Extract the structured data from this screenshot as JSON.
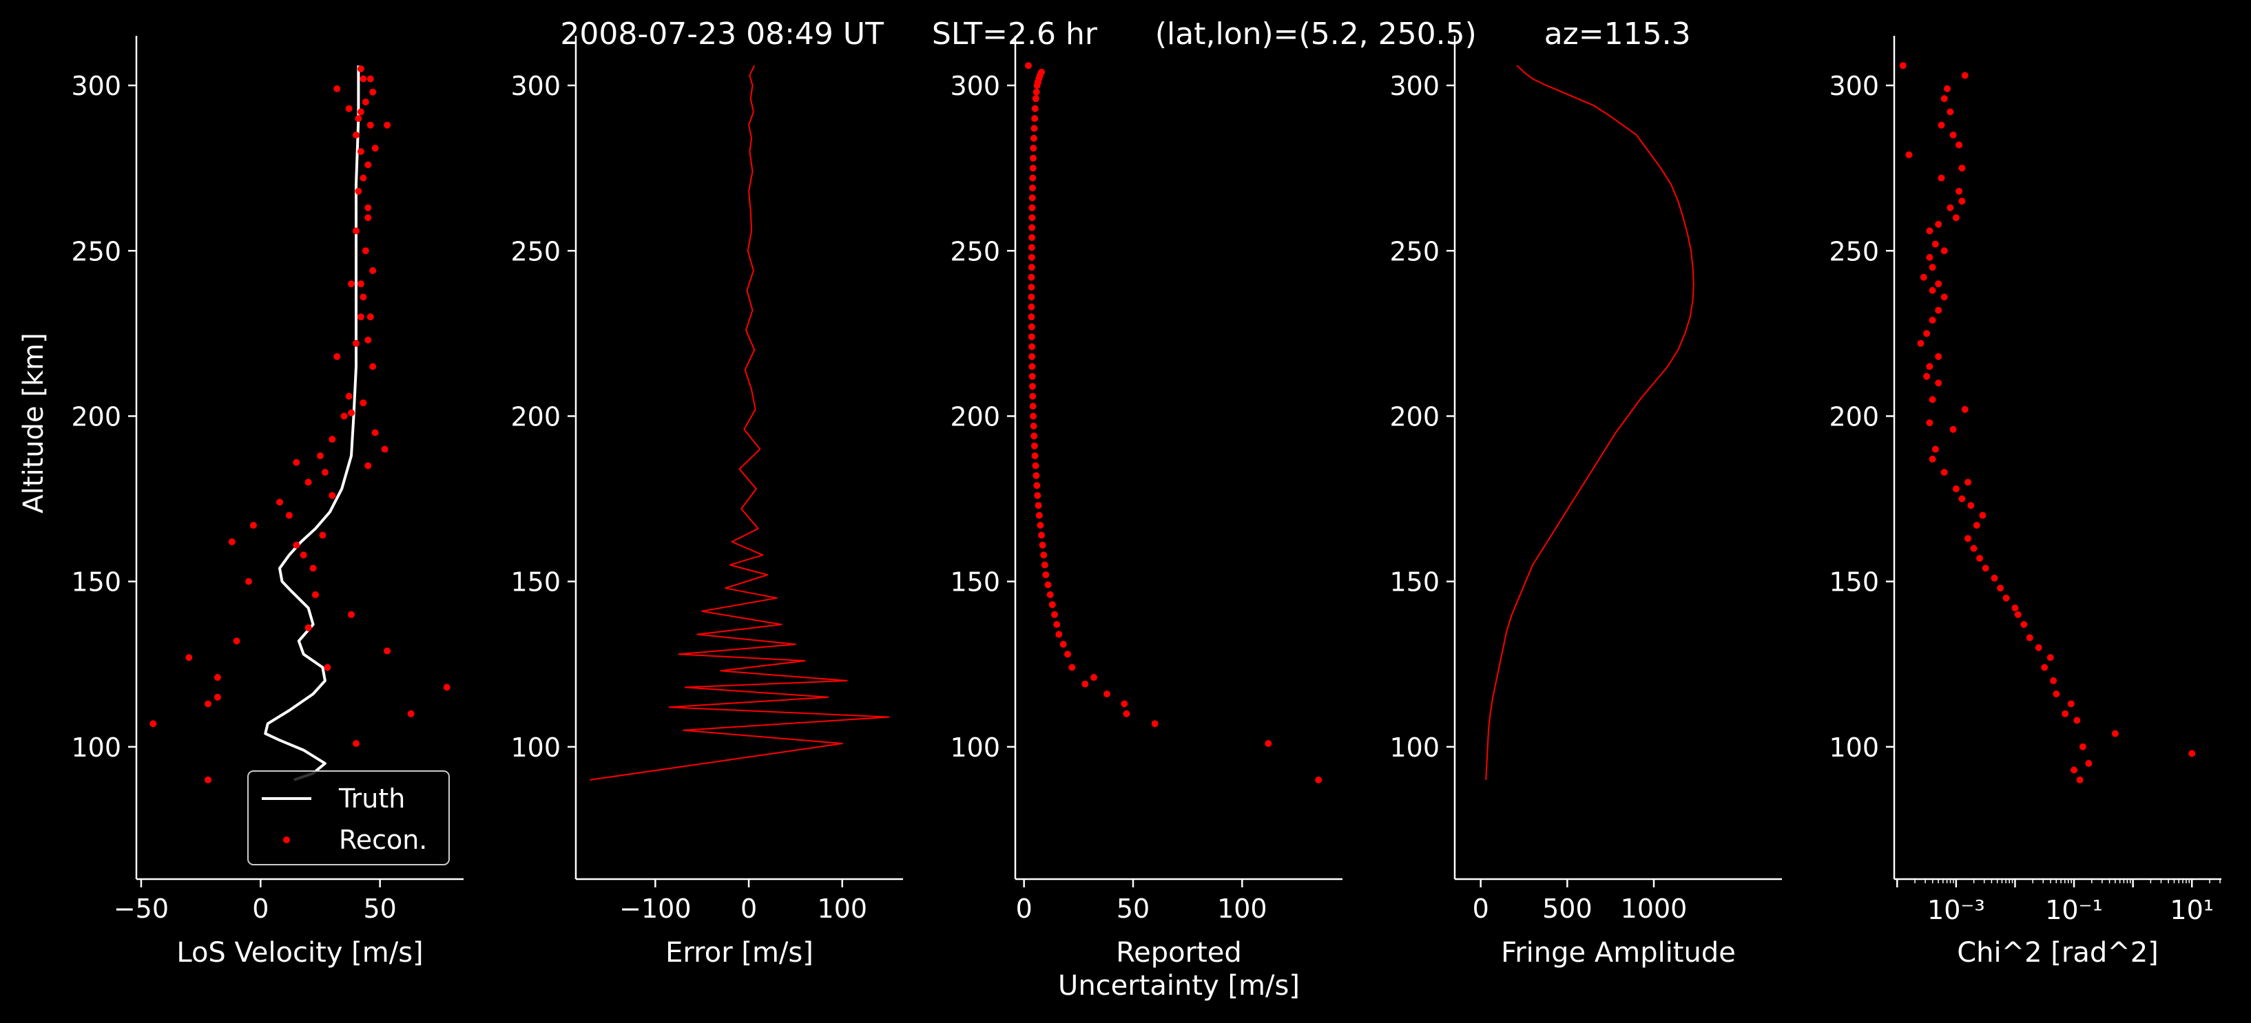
{
  "suptitle": "2008-07-23 08:49 UT     SLT=2.6 hr      (lat,lon)=(5.2, 250.5)       az=115.3",
  "colors": {
    "background": "#000000",
    "axis": "#ffffff",
    "truth": "#ffffff",
    "recon": "#ff0000"
  },
  "chart_data": [
    {
      "type": "line",
      "xlabel": "LoS Velocity [m/s]",
      "ylabel": "Altitude [km]",
      "xlim": [
        -52,
        85
      ],
      "ylim": [
        60,
        315
      ],
      "xticks": [
        -50,
        0,
        50
      ],
      "yticks": [
        100,
        150,
        200,
        250,
        300
      ],
      "legend": {
        "placement": "lower-right",
        "entries": [
          "Truth",
          "Recon."
        ]
      },
      "series": [
        {
          "name": "Truth",
          "kind": "line",
          "x": [
            14,
            22,
            27,
            18,
            8,
            2,
            3,
            12,
            22,
            27,
            26,
            18,
            16,
            22,
            20,
            13,
            9,
            8,
            12,
            17,
            23,
            29,
            34,
            38,
            39,
            40,
            40,
            40,
            40,
            41,
            41
          ],
          "y": [
            90,
            92,
            95,
            99,
            102,
            104,
            107,
            111,
            116,
            120,
            124,
            128,
            132,
            137,
            142,
            147,
            150,
            154,
            158,
            162,
            166,
            171,
            178,
            188,
            200,
            215,
            230,
            250,
            270,
            290,
            306
          ]
        },
        {
          "name": "Recon.",
          "kind": "scatter",
          "x": [
            -22,
            40,
            63,
            78,
            -45,
            -30,
            -22,
            -18,
            -18,
            28,
            53,
            38,
            -10,
            20,
            23,
            -5,
            22,
            18,
            15,
            -12,
            26,
            -3,
            12,
            8,
            20,
            30,
            15,
            27,
            25,
            30,
            45,
            35,
            48,
            52,
            38,
            43,
            37,
            47,
            32,
            40,
            45,
            42,
            38,
            47,
            44,
            40,
            45,
            41,
            43,
            45,
            48,
            40,
            46,
            42,
            44,
            47,
            41,
            43,
            42,
            46,
            53,
            42,
            32,
            37,
            42,
            46,
            43,
            45
          ],
          "y": [
            90,
            101,
            110,
            118,
            107,
            127,
            113,
            115,
            121,
            124,
            129,
            140,
            132,
            136,
            146,
            150,
            154,
            158,
            161,
            162,
            164,
            167,
            170,
            174,
            180,
            176,
            186,
            183,
            188,
            193,
            185,
            200,
            195,
            190,
            201,
            204,
            206,
            215,
            218,
            222,
            223,
            230,
            240,
            244,
            250,
            256,
            263,
            268,
            272,
            276,
            281,
            285,
            288,
            292,
            295,
            298,
            290,
            302,
            305,
            302,
            288,
            280,
            299,
            293,
            240,
            230,
            236,
            260
          ]
        }
      ]
    },
    {
      "type": "line",
      "xlabel": "Error [m/s]",
      "xlim": [
        -185,
        165
      ],
      "ylim": [
        60,
        315
      ],
      "xticks": [
        -100,
        0,
        100
      ],
      "yticks": [
        100,
        150,
        200,
        250,
        300
      ],
      "series": [
        {
          "name": "",
          "kind": "jagged",
          "x": [
            -170,
            100,
            -70,
            150,
            -85,
            85,
            -68,
            105,
            -30,
            60,
            -75,
            50,
            -55,
            35,
            -50,
            30,
            -25,
            20,
            -20,
            15,
            -18,
            10,
            -8,
            8,
            -10,
            12,
            -5,
            7,
            3,
            -4,
            6,
            -3,
            4,
            -2,
            5,
            -1,
            3,
            2,
            0,
            4,
            1,
            3,
            0,
            5,
            2,
            4,
            1,
            6
          ],
          "y": [
            90,
            101,
            105,
            109,
            112,
            115,
            118,
            120,
            123,
            126,
            128,
            131,
            134,
            137,
            141,
            145,
            148,
            152,
            155,
            158,
            162,
            166,
            172,
            178,
            184,
            190,
            196,
            202,
            208,
            214,
            220,
            226,
            232,
            238,
            244,
            250,
            256,
            262,
            268,
            274,
            280,
            284,
            288,
            292,
            296,
            300,
            303,
            306
          ]
        }
      ]
    },
    {
      "type": "scatter",
      "xlabel": "Reported Uncertainty [m/s]",
      "xlim": [
        -4,
        146
      ],
      "ylim": [
        60,
        315
      ],
      "xticks": [
        0,
        50,
        100
      ],
      "yticks": [
        100,
        150,
        200,
        250,
        300
      ],
      "series": [
        {
          "name": "",
          "kind": "scatter",
          "x": [
            135,
            112,
            60,
            47,
            46,
            38,
            32,
            28,
            22,
            20,
            18,
            16,
            15,
            14,
            13,
            12,
            11,
            10,
            9.5,
            9,
            8.5,
            8,
            7.5,
            7,
            6.6,
            6.2,
            5.9,
            5.6,
            5.3,
            5,
            4.8,
            4.6,
            4.4,
            4.2,
            4.1,
            4,
            3.9,
            3.8,
            3.7,
            3.6,
            3.6,
            3.5,
            3.5,
            3.4,
            3.4,
            3.4,
            3.4,
            3.4,
            3.5,
            3.5,
            3.5,
            3.6,
            3.6,
            3.7,
            3.7,
            3.8,
            3.9,
            4,
            4.1,
            4.2,
            4.3,
            4.5,
            4.7,
            4.9,
            5.1,
            5.4,
            5.7,
            6,
            6.4,
            6.8,
            7.3,
            8,
            2
          ],
          "y": [
            90,
            101,
            107,
            110,
            113,
            116,
            121,
            119,
            124,
            128,
            131,
            134,
            137,
            140,
            143,
            146,
            149,
            152,
            155,
            158,
            161,
            164,
            167,
            170,
            173,
            176,
            179,
            182,
            185,
            188,
            191,
            194,
            197,
            200,
            203,
            206,
            209,
            212,
            215,
            218,
            221,
            224,
            227,
            230,
            233,
            236,
            239,
            242,
            245,
            248,
            251,
            254,
            257,
            260,
            263,
            266,
            269,
            272,
            275,
            278,
            281,
            284,
            287,
            290,
            293,
            296,
            298,
            300,
            301,
            302,
            303,
            304,
            306
          ]
        }
      ]
    },
    {
      "type": "line",
      "xlabel": "Fringe Amplitude",
      "xlim": [
        -150,
        1740
      ],
      "ylim": [
        60,
        315
      ],
      "xticks": [
        0,
        500,
        1000
      ],
      "yticks": [
        100,
        150,
        200,
        250,
        300
      ],
      "series": [
        {
          "name": "",
          "kind": "line",
          "x": [
            30,
            35,
            40,
            45,
            55,
            70,
            90,
            110,
            130,
            150,
            180,
            220,
            260,
            300,
            360,
            420,
            480,
            540,
            600,
            660,
            720,
            780,
            850,
            920,
            1000,
            1080,
            1140,
            1180,
            1210,
            1225,
            1230,
            1225,
            1215,
            1195,
            1170,
            1140,
            1100,
            1040,
            970,
            900,
            820,
            740,
            650,
            560,
            470,
            380,
            300,
            250,
            230,
            210
          ],
          "y": [
            90,
            95,
            100,
            105,
            110,
            115,
            120,
            125,
            130,
            135,
            140,
            145,
            150,
            155,
            160,
            165,
            170,
            175,
            180,
            185,
            190,
            195,
            200,
            205,
            210,
            215,
            220,
            225,
            230,
            235,
            240,
            245,
            250,
            255,
            260,
            265,
            270,
            275,
            280,
            285,
            288,
            291,
            294,
            296,
            298,
            300,
            302,
            304,
            305,
            306
          ]
        }
      ]
    },
    {
      "type": "scatter",
      "xlabel": "Chi^2 [rad^2]",
      "xscale": "log",
      "xlim_log10": [
        -4.05,
        1.5
      ],
      "ylim": [
        60,
        315
      ],
      "xtick_labels": [
        "10⁻³",
        "10⁻¹",
        "10¹"
      ],
      "xtick_exponents": [
        -3,
        -1,
        1
      ],
      "yticks": [
        100,
        150,
        200,
        250,
        300
      ],
      "series": [
        {
          "name": "",
          "kind": "scatter",
          "log10_x": [
            -0.9,
            1,
            -1.0,
            -0.75,
            -0.3,
            -0.85,
            -0.95,
            -1.15,
            -1.05,
            -1.3,
            -1.35,
            -1.5,
            -1.4,
            -1.6,
            -1.75,
            -1.85,
            -1.95,
            -2.0,
            -2.15,
            -2.25,
            -2.35,
            -2.5,
            -2.6,
            -2.7,
            -2.8,
            -2.65,
            -2.55,
            -2.75,
            -2.9,
            -3.0,
            -2.8,
            -3.2,
            -3.4,
            -3.35,
            -3.05,
            -2.85,
            -3.4,
            -3.45,
            -3.3,
            -3.5,
            -3.45,
            -3.3,
            -3.6,
            -3.5,
            -3.4,
            -3.3,
            -3.2,
            -3.4,
            -3.3,
            -3.55,
            -3.4,
            -3.45,
            -3.2,
            -3.35,
            -3.45,
            -3.3,
            -3.0,
            -3.1,
            -2.9,
            -2.95,
            -3.8,
            -3.25,
            -2.9,
            -2.95,
            -3.05,
            -3.25,
            -3.9,
            -3.1,
            -3.2,
            -3.15,
            -2.85
          ],
          "y": [
            90,
            98,
            93,
            95,
            104,
            100,
            108,
            110,
            113,
            116,
            120,
            124,
            127,
            130,
            133,
            137,
            140,
            142,
            145,
            148,
            151,
            154,
            157,
            160,
            163,
            167,
            170,
            173,
            175,
            178,
            180,
            183,
            187,
            190,
            196,
            202,
            205,
            198,
            210,
            212,
            215,
            218,
            222,
            225,
            229,
            232,
            236,
            238,
            240,
            242,
            245,
            248,
            250,
            252,
            256,
            258,
            260,
            263,
            265,
            268,
            279,
            272,
            275,
            282,
            285,
            288,
            306,
            292,
            296,
            299,
            303
          ]
        }
      ]
    }
  ]
}
